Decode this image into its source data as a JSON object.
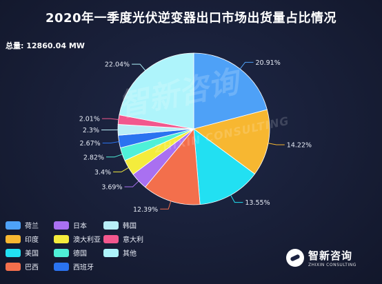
{
  "title": "2020年一季度光伏逆变器出口市场出货量占比情况",
  "total_label": "总量: 12860.04 MW",
  "watermark": {
    "cn": "智新咨询",
    "en": "ZHIXIN CONSULTING"
  },
  "brand": {
    "cn": "智新咨询",
    "en": "ZHIXIN CONSULTING"
  },
  "chart_data": {
    "type": "pie",
    "title": "2020年一季度光伏逆变器出口市场出货量占比情况",
    "total": "12860.04 MW",
    "unit": "%",
    "slices": [
      {
        "name": "荷兰",
        "value": 20.91,
        "label": "20.91%",
        "color": "#4ea1f7"
      },
      {
        "name": "印度",
        "value": 14.22,
        "label": "14.22%",
        "color": "#f7b731"
      },
      {
        "name": "美国",
        "value": 13.55,
        "label": "13.55%",
        "color": "#22e0f2"
      },
      {
        "name": "巴西",
        "value": 12.39,
        "label": "12.39%",
        "color": "#f36f4c"
      },
      {
        "name": "日本",
        "value": 3.69,
        "label": "3.69%",
        "color": "#a970f1"
      },
      {
        "name": "澳大利亚",
        "value": 3.4,
        "label": "3.4%",
        "color": "#f4ec3c"
      },
      {
        "name": "德国",
        "value": 2.82,
        "label": "2.82%",
        "color": "#4ff0d8"
      },
      {
        "name": "西班牙",
        "value": 2.67,
        "label": "2.67%",
        "color": "#2a73f0"
      },
      {
        "name": "韩国",
        "value": 2.3,
        "label": "2.3%",
        "color": "#b9eef7"
      },
      {
        "name": "意大利",
        "value": 2.01,
        "label": "2.01%",
        "color": "#f2578d"
      },
      {
        "name": "其他",
        "value": 22.04,
        "label": "22.04%",
        "color": "#aef4fb"
      }
    ],
    "legend": {
      "placement": "bottom-left",
      "order": [
        "荷兰",
        "日本",
        "韩国",
        "印度",
        "澳大利亚",
        "意大利",
        "美国",
        "德国",
        "其他",
        "巴西",
        "西班牙"
      ]
    }
  }
}
